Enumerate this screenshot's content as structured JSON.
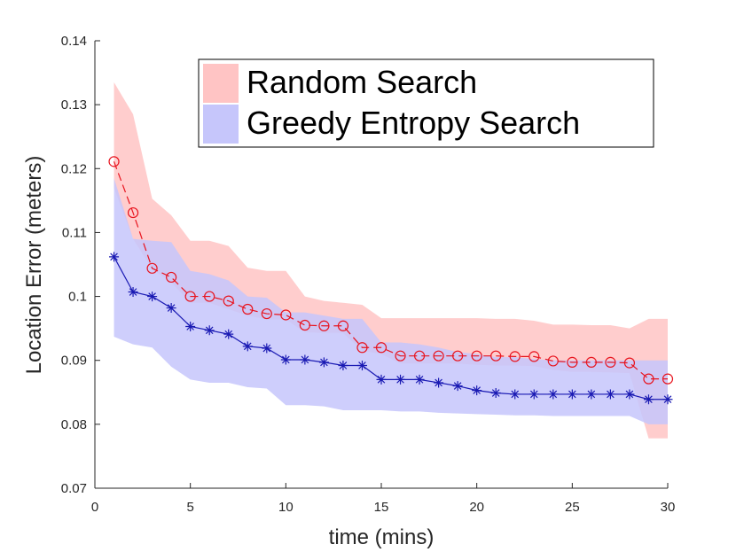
{
  "chart_data": {
    "type": "line",
    "xlabel": "time (mins)",
    "ylabel": "Location Error (meters)",
    "xlim": [
      0,
      30
    ],
    "ylim": [
      0.07,
      0.14
    ],
    "xticks": [
      0,
      5,
      10,
      15,
      20,
      25,
      30
    ],
    "yticks": [
      0.07,
      0.08,
      0.09,
      0.1,
      0.11,
      0.12,
      0.13,
      0.14
    ],
    "legend_position": "top-right",
    "x": [
      1,
      2,
      3,
      4,
      5,
      6,
      7,
      8,
      9,
      10,
      11,
      12,
      13,
      14,
      15,
      16,
      17,
      18,
      19,
      20,
      21,
      22,
      23,
      24,
      25,
      26,
      27,
      28,
      29,
      30
    ],
    "series": [
      {
        "name": "Random Search",
        "color": "#e8141e",
        "band_color": "#ffc4c4",
        "marker": "circle",
        "line_style": "dashed",
        "values": [
          0.1211,
          0.1131,
          0.1044,
          0.103,
          0.1,
          0.1,
          0.0993,
          0.098,
          0.0973,
          0.0971,
          0.0955,
          0.0954,
          0.0954,
          0.092,
          0.092,
          0.0907,
          0.0907,
          0.0907,
          0.0907,
          0.0907,
          0.0907,
          0.0906,
          0.0906,
          0.0899,
          0.0897,
          0.0897,
          0.0897,
          0.0896,
          0.0871,
          0.0871
        ],
        "upper": [
          0.1335,
          0.1285,
          0.1153,
          0.1127,
          0.1087,
          0.1087,
          0.1079,
          0.1045,
          0.104,
          0.104,
          0.1,
          0.0993,
          0.099,
          0.0987,
          0.0966,
          0.0966,
          0.0966,
          0.0966,
          0.0966,
          0.0966,
          0.0965,
          0.0965,
          0.0962,
          0.0956,
          0.0956,
          0.0955,
          0.0955,
          0.095,
          0.0965,
          0.0965
        ],
        "lower": [
          0.117,
          0.109,
          0.1043,
          0.1022,
          0.099,
          0.099,
          0.098,
          0.097,
          0.0964,
          0.0964,
          0.0944,
          0.0943,
          0.0943,
          0.0915,
          0.091,
          0.0895,
          0.0895,
          0.0895,
          0.0895,
          0.0893,
          0.0892,
          0.0892,
          0.0891,
          0.0885,
          0.0882,
          0.0882,
          0.0881,
          0.088,
          0.0778,
          0.0778
        ]
      },
      {
        "name": "Greedy Entropy Search",
        "color": "#1a1ab3",
        "band_color": "#c6c6fb",
        "marker": "asterisk",
        "line_style": "solid",
        "values": [
          0.1062,
          0.1007,
          0.1,
          0.0982,
          0.0953,
          0.0947,
          0.0941,
          0.0922,
          0.0919,
          0.0901,
          0.0901,
          0.0897,
          0.0892,
          0.0892,
          0.087,
          0.087,
          0.087,
          0.0865,
          0.086,
          0.0853,
          0.0849,
          0.0847,
          0.0847,
          0.0847,
          0.0847,
          0.0847,
          0.0847,
          0.0847,
          0.0839,
          0.0839
        ],
        "upper": [
          0.1185,
          0.109,
          0.1087,
          0.1085,
          0.104,
          0.1035,
          0.1025,
          0.1,
          0.0998,
          0.0975,
          0.0975,
          0.097,
          0.0965,
          0.0965,
          0.0928,
          0.0928,
          0.0925,
          0.092,
          0.0913,
          0.091,
          0.0905,
          0.0905,
          0.0902,
          0.09,
          0.09,
          0.09,
          0.09,
          0.09,
          0.09,
          0.09
        ],
        "lower": [
          0.0937,
          0.0925,
          0.092,
          0.089,
          0.087,
          0.0865,
          0.0865,
          0.0858,
          0.0856,
          0.083,
          0.083,
          0.0828,
          0.0822,
          0.0822,
          0.0822,
          0.082,
          0.082,
          0.0818,
          0.0817,
          0.0816,
          0.0815,
          0.0814,
          0.0814,
          0.0813,
          0.0813,
          0.0813,
          0.0813,
          0.0813,
          0.08,
          0.08
        ]
      }
    ]
  }
}
